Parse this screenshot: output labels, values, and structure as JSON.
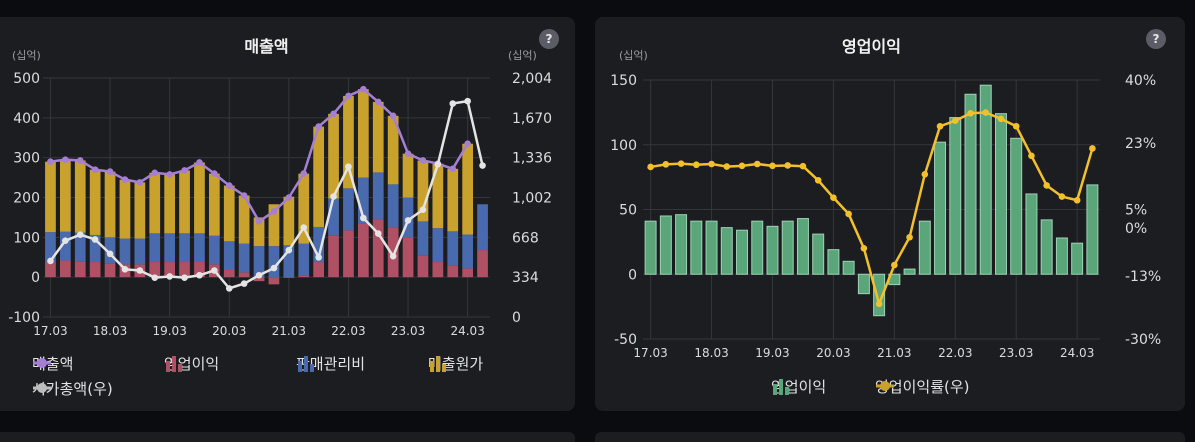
{
  "chart_data": [
    {
      "type": "bar",
      "title": "매출액",
      "ylabel_left": "(십억)",
      "ylabel_right": "(십억)",
      "ylim": [
        -100,
        500
      ],
      "ylim_right": [
        0,
        2004
      ],
      "yticks_left": [
        "500",
        "400",
        "300",
        "200",
        "100",
        "0",
        "-100"
      ],
      "yticks_right": [
        "2,004",
        "1,670",
        "1,336",
        "1,002",
        "668",
        "334",
        "0"
      ],
      "x_ticks": [
        "17.03",
        "18.03",
        "19.03",
        "20.03",
        "21.03",
        "22.03",
        "23.03",
        "24.03"
      ],
      "x": [
        "17.03",
        "17.06",
        "17.09",
        "17.12",
        "18.03",
        "18.06",
        "18.09",
        "18.12",
        "19.03",
        "19.06",
        "19.09",
        "19.12",
        "20.03",
        "20.06",
        "20.09",
        "20.12",
        "21.03",
        "21.06",
        "21.09",
        "21.12",
        "22.03",
        "22.06",
        "22.09",
        "22.12",
        "23.03",
        "23.06",
        "23.09",
        "23.12",
        "24.03",
        "24.06"
      ],
      "series": [
        {
          "name": "매출액",
          "kind": "line",
          "axis": "left",
          "color": "#a57fd4",
          "values": [
            290,
            295,
            293,
            270,
            265,
            245,
            238,
            262,
            258,
            268,
            288,
            260,
            230,
            205,
            140,
            165,
            200,
            260,
            378,
            410,
            455,
            472,
            440,
            405,
            310,
            293,
            285,
            272,
            335,
            null
          ]
        },
        {
          "name": "영업이익",
          "kind": "bar",
          "axis": "left",
          "color": "#b05064",
          "values": [
            38,
            42,
            40,
            38,
            35,
            32,
            32,
            38,
            38,
            38,
            38,
            32,
            18,
            12,
            -10,
            -18,
            -2,
            4,
            38,
            105,
            118,
            135,
            145,
            125,
            100,
            55,
            38,
            30,
            22,
            68
          ]
        },
        {
          "name": "판매관리비",
          "kind": "bar",
          "axis": "left",
          "color": "#4a6aae",
          "values": [
            75,
            72,
            72,
            68,
            65,
            65,
            65,
            72,
            72,
            72,
            72,
            72,
            72,
            72,
            78,
            78,
            80,
            80,
            88,
            92,
            105,
            115,
            118,
            108,
            100,
            85,
            85,
            85,
            85,
            115
          ]
        },
        {
          "name": "매출원가",
          "kind": "bar",
          "axis": "left",
          "color": "#c9a22e",
          "values": [
            177,
            181,
            181,
            164,
            165,
            148,
            141,
            152,
            148,
            158,
            178,
            156,
            140,
            121,
            72,
            105,
            122,
            176,
            252,
            213,
            232,
            222,
            177,
            172,
            110,
            153,
            162,
            157,
            228,
            null
          ]
        },
        {
          "name": "시가총액(우)",
          "kind": "line",
          "axis": "right",
          "color": "#e4e4e4",
          "values": [
            470,
            640,
            690,
            650,
            530,
            400,
            390,
            330,
            340,
            330,
            350,
            390,
            240,
            280,
            350,
            410,
            560,
            750,
            500,
            1010,
            1260,
            830,
            700,
            510,
            810,
            900,
            1280,
            1790,
            1810,
            1270
          ]
        }
      ],
      "legend": [
        "매출액",
        "영업이익",
        "판매관리비",
        "매출원가",
        "시가총액(우)"
      ]
    },
    {
      "type": "bar",
      "title": "영업이익",
      "ylabel_left": "(십억)",
      "ylim": [
        -50,
        150
      ],
      "ylim_right": [
        -30,
        40
      ],
      "yticks_left": [
        "150",
        "100",
        "50",
        "0",
        "-50"
      ],
      "yticks_right": [
        "40%",
        "23%",
        "5%",
        "0%",
        "-13%",
        "-30%"
      ],
      "x_ticks": [
        "17.03",
        "18.03",
        "19.03",
        "20.03",
        "21.03",
        "22.03",
        "23.03",
        "24.03"
      ],
      "x": [
        "17.03",
        "17.06",
        "17.09",
        "17.12",
        "18.03",
        "18.06",
        "18.09",
        "18.12",
        "19.03",
        "19.06",
        "19.09",
        "19.12",
        "20.03",
        "20.06",
        "20.09",
        "20.12",
        "21.03",
        "21.06",
        "21.09",
        "21.12",
        "22.03",
        "22.06",
        "22.09",
        "22.12",
        "23.03",
        "23.06",
        "23.09",
        "23.12",
        "24.03",
        "24.06"
      ],
      "series": [
        {
          "name": "영업이익",
          "kind": "bar",
          "axis": "left",
          "color": "#5aa57a",
          "values": [
            41,
            45,
            46,
            41,
            41,
            36,
            34,
            41,
            37,
            41,
            43,
            31,
            19,
            10,
            -15,
            -32,
            -8,
            4,
            41,
            102,
            121,
            139,
            146,
            124,
            105,
            62,
            42,
            28,
            24,
            69
          ]
        },
        {
          "name": "영업이익률(우)",
          "kind": "line",
          "axis": "right",
          "color": "#f3c02b",
          "values": [
            16.5,
            17.2,
            17.4,
            17.1,
            17.3,
            16.6,
            16.8,
            17.3,
            16.8,
            16.9,
            16.7,
            12.9,
            8.2,
            3.8,
            -5.5,
            -20.5,
            -10,
            -2.5,
            14.5,
            27.5,
            29,
            31,
            31.2,
            29.5,
            27.5,
            19.5,
            11.5,
            8.5,
            7.5,
            21.5
          ]
        }
      ],
      "legend": [
        "영업이익",
        "영업이익률(우)"
      ]
    }
  ]
}
